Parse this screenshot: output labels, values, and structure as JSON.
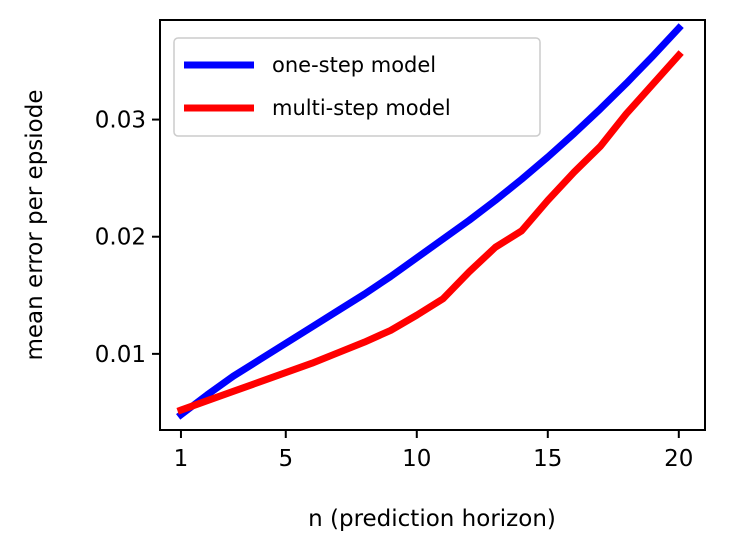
{
  "chart_data": {
    "type": "line",
    "xlabel": "n (prediction horizon)",
    "ylabel": "mean error per epsiode",
    "xlim": [
      0.2,
      21.0
    ],
    "ylim": [
      0.0035,
      0.0385
    ],
    "xticks": [
      1,
      5,
      10,
      15,
      20
    ],
    "xtick_labels": [
      "1",
      "5",
      "10",
      "15",
      "20"
    ],
    "yticks": [
      0.01,
      0.02,
      0.03
    ],
    "ytick_labels": [
      "0.01",
      "0.02",
      "0.03"
    ],
    "grid": false,
    "legend_position": "top-left",
    "x": [
      1,
      2,
      3,
      4,
      5,
      6,
      7,
      8,
      9,
      10,
      11,
      12,
      13,
      14,
      15,
      16,
      17,
      18,
      19,
      20
    ],
    "series": [
      {
        "name": "one-step model",
        "color": "#0000ff",
        "values": [
          0.0048,
          0.0065,
          0.0081,
          0.0095,
          0.0109,
          0.0123,
          0.0137,
          0.0151,
          0.0166,
          0.0182,
          0.0198,
          0.0214,
          0.0231,
          0.0249,
          0.0268,
          0.0288,
          0.0309,
          0.0331,
          0.0354,
          0.0378
        ]
      },
      {
        "name": "multi-step model",
        "color": "#ff0000",
        "values": [
          0.0052,
          0.006,
          0.0068,
          0.0076,
          0.0084,
          0.0092,
          0.0101,
          0.011,
          0.012,
          0.0133,
          0.0147,
          0.017,
          0.0191,
          0.0205,
          0.0231,
          0.0255,
          0.0277,
          0.0305,
          0.033,
          0.0355
        ]
      }
    ]
  }
}
